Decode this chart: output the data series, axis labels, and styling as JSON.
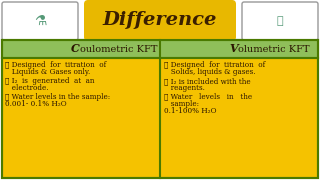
{
  "title": "Difference",
  "title_bg": "#E8B800",
  "title_color": "#3A1F00",
  "header_bg": "#8FBF5A",
  "header_color": "#2A1500",
  "cell_bg": "#F5C200",
  "cell_color": "#2A1500",
  "border_color": "#4A7A00",
  "outer_bg": "#FFFFFF",
  "col1_header_big": "C",
  "col1_header_rest": "oulometric KFT",
  "col2_header_big": "V",
  "col2_header_rest": "olumetric KFT",
  "col1_lines": [
    [
      "➤ Designed  for  titration  of",
      "   Liquids & Gases only."
    ],
    [
      "➤ I₂  is  generated  at  an",
      "   electrode."
    ],
    [
      "➤ Water levels in the sample:",
      "0.001- 0.1% H₂O"
    ]
  ],
  "col2_lines": [
    [
      "➤ Designed  for  titration  of",
      "   Solids, liquids & gases."
    ],
    [
      "➤ I₂ is included with the",
      "   reagents."
    ],
    [
      "➤ Water   levels   in   the",
      "   sample:",
      "0.1-100% H₂O"
    ]
  ],
  "fig_width": 3.2,
  "fig_height": 1.8,
  "dpi": 100
}
